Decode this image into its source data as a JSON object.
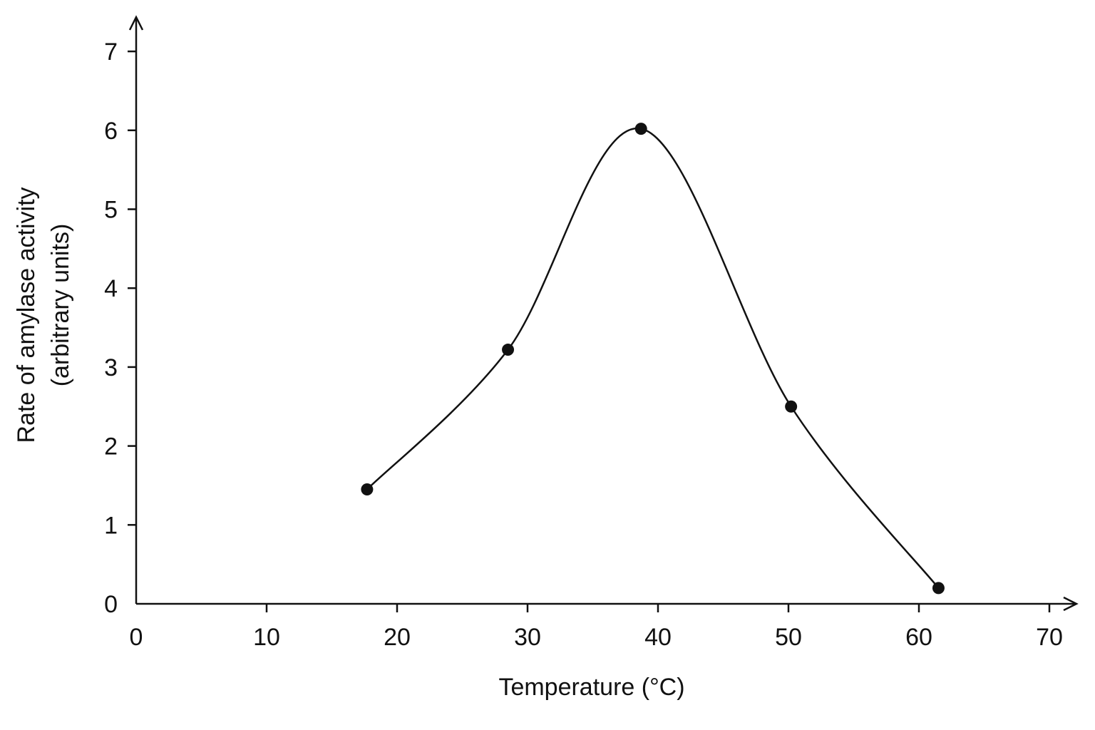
{
  "chart_data": {
    "type": "line",
    "xlabel": "Temperature (°C)",
    "ylabel_lines": [
      "Rate of amylase activity",
      "(arbitrary units)"
    ],
    "xlim": [
      0,
      70
    ],
    "ylim": [
      0,
      7
    ],
    "xticks": [
      "0",
      "10",
      "20",
      "30",
      "40",
      "50",
      "60",
      "70"
    ],
    "yticks": [
      "0",
      "1",
      "2",
      "3",
      "4",
      "5",
      "6",
      "7"
    ],
    "grid": false,
    "legend": "none",
    "series": [
      {
        "points": [
          {
            "x": 17.7,
            "y": 1.45
          },
          {
            "x": 28.5,
            "y": 3.22
          },
          {
            "x": 38.7,
            "y": 6.02
          },
          {
            "x": 50.2,
            "y": 2.5
          },
          {
            "x": 61.5,
            "y": 0.2
          }
        ]
      }
    ],
    "colors": {
      "line": "#111111",
      "marker": "#111111"
    }
  }
}
